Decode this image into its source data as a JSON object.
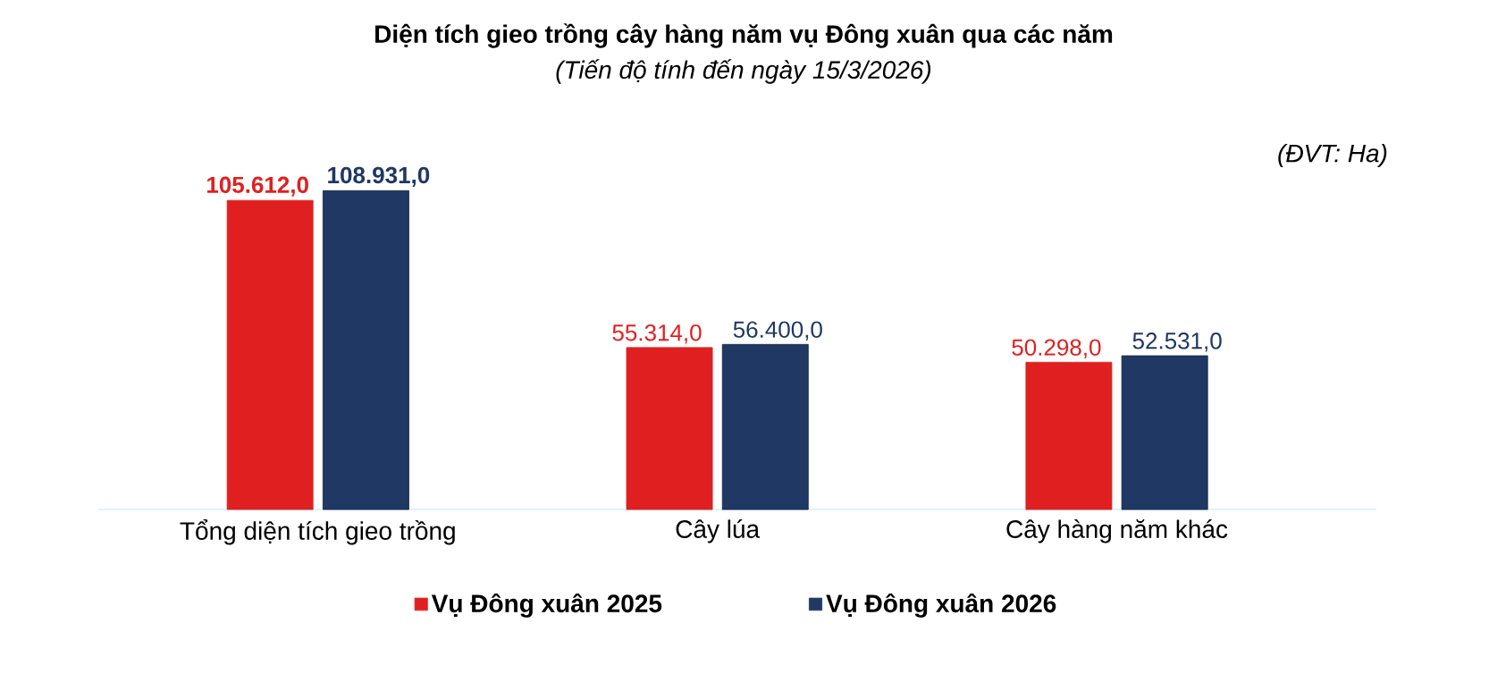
{
  "chart_data": {
    "type": "bar",
    "title": "Diện tích gieo trồng cây hàng năm vụ Đông xuân qua các năm",
    "subtitle": "(Tiến độ tính đến ngày 15/3/2026)",
    "annotations": [
      "(ĐVT: Ha)"
    ],
    "categories": [
      "Tổng diện tích gieo trồng",
      "Cây lúa",
      "Cây hàng năm khác"
    ],
    "series": [
      {
        "name": "Vụ Đông xuân 2025",
        "color": "#e02020",
        "values": [
          105612.0,
          55314.0,
          50298.0
        ],
        "value_labels": [
          "105.612,0",
          "55.314,0",
          "50.298,0"
        ]
      },
      {
        "name": "Vụ Đông xuân 2026",
        "color": "#1f3864",
        "values": [
          108931.0,
          56400.0,
          52531.0
        ],
        "value_labels": [
          "108.931,0",
          "56.400,0",
          "52.531,0"
        ]
      }
    ],
    "legend": "bottom"
  }
}
